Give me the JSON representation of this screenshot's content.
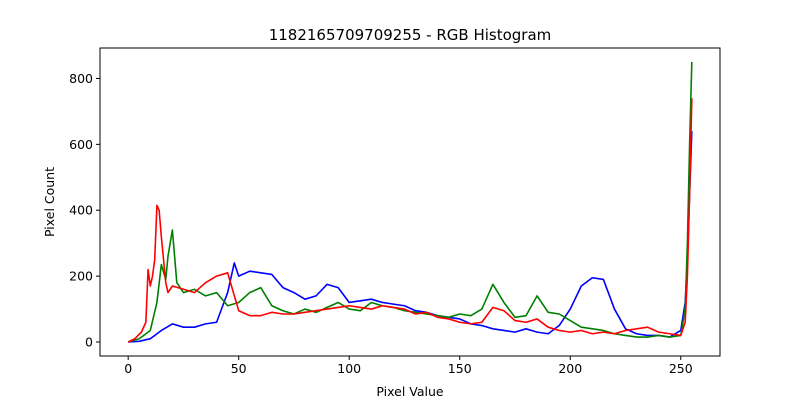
{
  "chart_data": {
    "type": "line",
    "title": "1182165709709255 - RGB Histogram",
    "xlabel": "Pixel Value",
    "ylabel": "Pixel Count",
    "xlim": [
      -12.75,
      267.75
    ],
    "ylim": [
      -42.5,
      892.5
    ],
    "xticks": [
      0,
      50,
      100,
      150,
      200,
      250
    ],
    "yticks": [
      0,
      200,
      400,
      600,
      800
    ],
    "grid": false,
    "legend": "none",
    "x_step": 5,
    "series": [
      {
        "color": "#0000ff",
        "x": [
          0,
          5,
          10,
          15,
          20,
          25,
          30,
          35,
          40,
          45,
          48,
          50,
          55,
          60,
          65,
          70,
          75,
          80,
          85,
          90,
          95,
          100,
          105,
          110,
          115,
          120,
          125,
          130,
          135,
          140,
          145,
          150,
          155,
          160,
          165,
          170,
          175,
          180,
          185,
          190,
          195,
          200,
          205,
          210,
          215,
          220,
          225,
          230,
          235,
          240,
          245,
          250,
          252,
          253,
          254,
          255
        ],
        "values": [
          0,
          2,
          10,
          35,
          55,
          45,
          45,
          55,
          60,
          150,
          240,
          200,
          215,
          210,
          205,
          165,
          150,
          130,
          140,
          175,
          165,
          120,
          125,
          130,
          120,
          115,
          110,
          95,
          90,
          80,
          75,
          70,
          55,
          50,
          40,
          35,
          30,
          40,
          30,
          25,
          50,
          100,
          170,
          195,
          190,
          100,
          40,
          25,
          20,
          20,
          15,
          35,
          120,
          250,
          450,
          640
        ]
      },
      {
        "color": "#008000",
        "x": [
          0,
          5,
          10,
          13,
          15,
          17,
          18,
          20,
          22,
          25,
          30,
          35,
          40,
          45,
          50,
          55,
          60,
          65,
          70,
          75,
          80,
          85,
          90,
          95,
          100,
          105,
          110,
          115,
          120,
          125,
          130,
          135,
          140,
          145,
          150,
          155,
          160,
          165,
          170,
          175,
          180,
          185,
          190,
          195,
          200,
          205,
          210,
          215,
          220,
          225,
          230,
          235,
          240,
          245,
          250,
          252,
          253,
          254,
          255
        ],
        "values": [
          0,
          10,
          35,
          120,
          235,
          190,
          260,
          340,
          180,
          150,
          160,
          140,
          150,
          110,
          120,
          150,
          165,
          110,
          95,
          85,
          100,
          90,
          105,
          120,
          100,
          95,
          120,
          110,
          105,
          95,
          90,
          85,
          80,
          75,
          85,
          80,
          100,
          175,
          120,
          75,
          80,
          140,
          90,
          85,
          65,
          45,
          40,
          35,
          25,
          20,
          15,
          15,
          20,
          15,
          20,
          100,
          300,
          600,
          850
        ]
      },
      {
        "color": "#ff0000",
        "x": [
          0,
          3,
          6,
          8,
          9,
          10,
          11,
          12,
          13,
          14,
          15,
          17,
          18,
          20,
          25,
          30,
          35,
          40,
          45,
          50,
          55,
          60,
          65,
          70,
          75,
          80,
          85,
          90,
          95,
          100,
          105,
          110,
          115,
          120,
          125,
          130,
          135,
          140,
          145,
          150,
          155,
          160,
          165,
          170,
          175,
          180,
          185,
          190,
          195,
          200,
          205,
          210,
          215,
          220,
          225,
          230,
          235,
          240,
          245,
          250,
          252,
          253,
          254,
          255
        ],
        "values": [
          0,
          10,
          30,
          60,
          220,
          170,
          200,
          250,
          415,
          400,
          320,
          180,
          150,
          170,
          160,
          150,
          180,
          200,
          210,
          95,
          80,
          80,
          90,
          85,
          85,
          90,
          95,
          100,
          105,
          110,
          105,
          100,
          110,
          105,
          100,
          85,
          90,
          75,
          70,
          60,
          55,
          60,
          105,
          95,
          65,
          60,
          70,
          45,
          35,
          30,
          35,
          25,
          30,
          25,
          35,
          40,
          45,
          30,
          25,
          20,
          60,
          200,
          450,
          740
        ]
      }
    ]
  }
}
